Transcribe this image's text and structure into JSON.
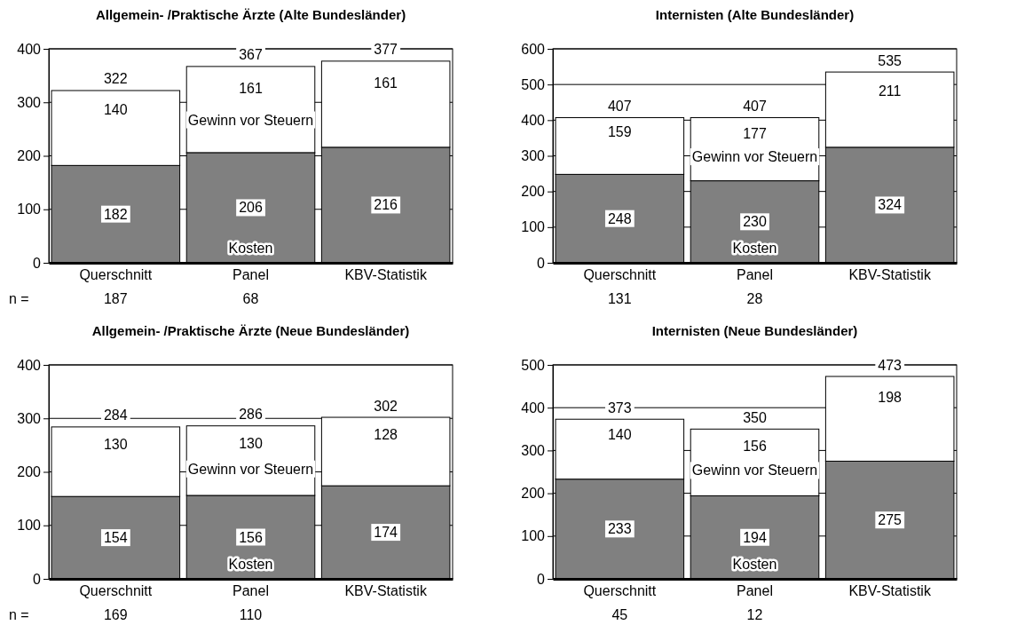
{
  "chart_data": [
    {
      "type": "bar",
      "title": "Allgemein- /Praktische Ärzte (Alte Bundesländer)",
      "categories": [
        "Querschnitt",
        "Panel",
        "KBV-Statistik"
      ],
      "stacked": true,
      "ylim": [
        0,
        400
      ],
      "yticks": [
        0,
        100,
        200,
        300,
        400
      ],
      "grid": "y",
      "legend": false,
      "data_labels": true,
      "totals": [
        "322",
        "367",
        "377"
      ],
      "series": [
        {
          "name": "Kosten",
          "color": "#808080",
          "values": [
            182,
            206,
            216
          ]
        },
        {
          "name": "Gewinn vor Steuern",
          "color": "#ffffff",
          "values": [
            140,
            161,
            161
          ]
        }
      ],
      "annotations": [
        "n =",
        "187",
        "68"
      ]
    },
    {
      "type": "bar",
      "title": "Internisten (Alte Bundesländer)",
      "categories": [
        "Querschnitt",
        "Panel",
        "KBV-Statistik"
      ],
      "stacked": true,
      "ylim": [
        0,
        600
      ],
      "yticks": [
        0,
        100,
        200,
        300,
        400,
        500,
        600
      ],
      "grid": "y",
      "legend": false,
      "data_labels": true,
      "totals": [
        "407",
        "407",
        "535"
      ],
      "series": [
        {
          "name": "Kosten",
          "color": "#808080",
          "values": [
            248,
            230,
            324
          ]
        },
        {
          "name": "Gewinn vor Steuern",
          "color": "#ffffff",
          "values": [
            159,
            177,
            211
          ]
        }
      ],
      "annotations": [
        "131",
        "28"
      ]
    },
    {
      "type": "bar",
      "title": "Allgemein- /Praktische Ärzte (Neue Bundesländer)",
      "categories": [
        "Querschnitt",
        "Panel",
        "KBV-Statistik"
      ],
      "stacked": true,
      "ylim": [
        0,
        400
      ],
      "yticks": [
        0,
        100,
        200,
        300,
        400
      ],
      "grid": "y",
      "legend": false,
      "data_labels": true,
      "totals": [
        "284",
        "286",
        "302"
      ],
      "series": [
        {
          "name": "Kosten",
          "color": "#808080",
          "values": [
            154,
            156,
            174
          ]
        },
        {
          "name": "Gewinn vor Steuern",
          "color": "#ffffff",
          "values": [
            130,
            130,
            128
          ]
        }
      ],
      "annotations": [
        "n =",
        "169",
        "110"
      ]
    },
    {
      "type": "bar",
      "title": "Internisten (Neue Bundesländer)",
      "categories": [
        "Querschnitt",
        "Panel",
        "KBV-Statistik"
      ],
      "stacked": true,
      "ylim": [
        0,
        500
      ],
      "yticks": [
        0,
        100,
        200,
        300,
        400,
        500
      ],
      "grid": "y",
      "legend": false,
      "data_labels": true,
      "totals": [
        "373",
        "350",
        "473"
      ],
      "series": [
        {
          "name": "Kosten",
          "color": "#808080",
          "values": [
            233,
            194,
            275
          ]
        },
        {
          "name": "Gewinn vor Steuern",
          "color": "#ffffff",
          "values": [
            140,
            156,
            198
          ]
        }
      ],
      "annotations": [
        "45",
        "12"
      ]
    }
  ]
}
